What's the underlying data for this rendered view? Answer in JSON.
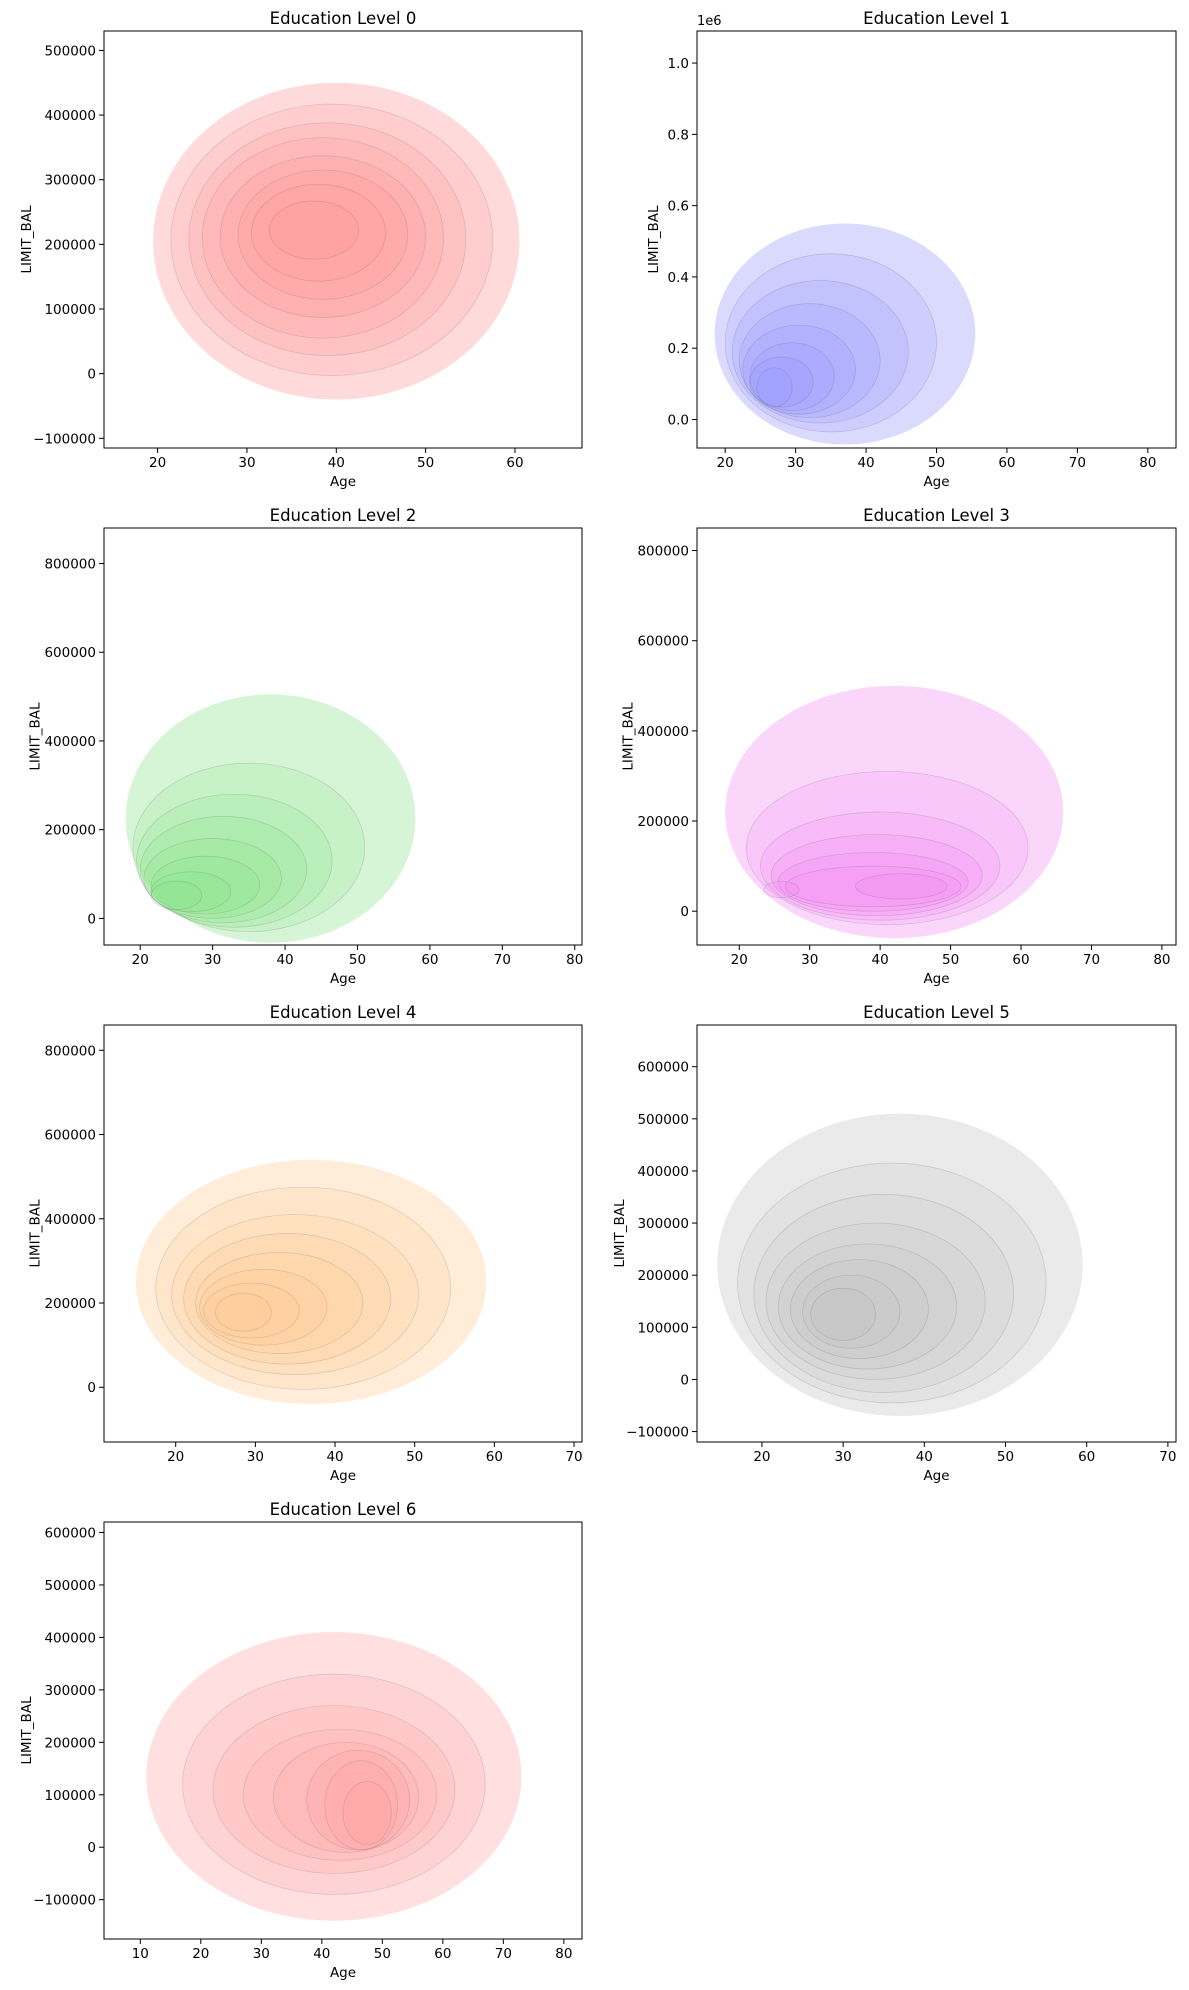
{
  "chart_data": [
    {
      "type": "kde_contour",
      "title": "Education Level 0",
      "xlabel": "Age",
      "ylabel": "LIMIT_BAL",
      "xlim": [
        14,
        67.5
      ],
      "ylim": [
        -115000,
        530000
      ],
      "xticks": [
        20,
        30,
        40,
        50,
        60
      ],
      "yticks": [
        -100000,
        0,
        100000,
        200000,
        300000,
        400000,
        500000
      ],
      "ytick_labels": [
        "−100000",
        "0",
        "100000",
        "200000",
        "300000",
        "400000",
        "500000"
      ],
      "offset_label": "",
      "color": "#ff8c8c",
      "levels": [
        {
          "cx": 40,
          "cy": 205000,
          "rx": 20.5,
          "ry": 245000
        },
        {
          "cx": 39.5,
          "cy": 207000,
          "rx": 18,
          "ry": 210000
        },
        {
          "cx": 39,
          "cy": 208000,
          "rx": 15.5,
          "ry": 180000
        },
        {
          "cx": 38.5,
          "cy": 210000,
          "rx": 13.5,
          "ry": 155000
        },
        {
          "cx": 38.5,
          "cy": 212000,
          "rx": 11.5,
          "ry": 125000
        },
        {
          "cx": 38.5,
          "cy": 215000,
          "rx": 9.5,
          "ry": 100000
        },
        {
          "cx": 38,
          "cy": 218000,
          "rx": 7.5,
          "ry": 75000
        },
        {
          "cx": 37.5,
          "cy": 222000,
          "rx": 5,
          "ry": 45000
        }
      ]
    },
    {
      "type": "kde_contour",
      "title": "Education Level 1",
      "xlabel": "Age",
      "ylabel": "LIMIT_BAL",
      "xlim": [
        16,
        84
      ],
      "ylim": [
        -80000,
        1090000
      ],
      "xticks": [
        20,
        30,
        40,
        50,
        60,
        70,
        80
      ],
      "yticks": [
        0,
        200000,
        400000,
        600000,
        800000,
        1000000
      ],
      "ytick_labels": [
        "0.0",
        "0.2",
        "0.4",
        "0.6",
        "0.8",
        "1.0"
      ],
      "offset_label": "1e6",
      "color": "#8c8cff",
      "levels": [
        {
          "cx": 37,
          "cy": 240000,
          "rx": 18.5,
          "ry": 310000
        },
        {
          "cx": 35,
          "cy": 215000,
          "rx": 15,
          "ry": 250000
        },
        {
          "cx": 33.5,
          "cy": 190000,
          "rx": 12.5,
          "ry": 200000
        },
        {
          "cx": 32,
          "cy": 165000,
          "rx": 10,
          "ry": 160000
        },
        {
          "cx": 30.5,
          "cy": 140000,
          "rx": 8,
          "ry": 125000
        },
        {
          "cx": 29.5,
          "cy": 120000,
          "rx": 6,
          "ry": 95000
        },
        {
          "cx": 28,
          "cy": 105000,
          "rx": 4.5,
          "ry": 70000
        },
        {
          "cx": 27,
          "cy": 90000,
          "rx": 2.5,
          "ry": 55000
        }
      ]
    },
    {
      "type": "kde_contour",
      "title": "Education Level 2",
      "xlabel": "Age",
      "ylabel": "LIMIT_BAL",
      "xlim": [
        15,
        81
      ],
      "ylim": [
        -60000,
        880000
      ],
      "xticks": [
        20,
        30,
        40,
        50,
        60,
        70,
        80
      ],
      "yticks": [
        0,
        200000,
        400000,
        600000,
        800000
      ],
      "ytick_labels": [
        "0",
        "200000",
        "400000",
        "600000",
        "800000"
      ],
      "offset_label": "",
      "color": "#7fe07f",
      "levels": [
        {
          "cx": 38,
          "cy": 225000,
          "rx": 20,
          "ry": 280000
        },
        {
          "cx": 35,
          "cy": 160000,
          "rx": 16,
          "ry": 190000
        },
        {
          "cx": 33,
          "cy": 130000,
          "rx": 13.5,
          "ry": 150000
        },
        {
          "cx": 31.5,
          "cy": 110000,
          "rx": 11.5,
          "ry": 120000
        },
        {
          "cx": 30,
          "cy": 90000,
          "rx": 9.5,
          "ry": 90000
        },
        {
          "cx": 29,
          "cy": 75000,
          "rx": 7.5,
          "ry": 65000
        },
        {
          "cx": 27,
          "cy": 60000,
          "rx": 5.5,
          "ry": 45000
        },
        {
          "cx": 25,
          "cy": 52000,
          "rx": 3.5,
          "ry": 32000
        }
      ]
    },
    {
      "type": "kde_contour",
      "title": "Education Level 3",
      "xlabel": "Age",
      "ylabel": "LIMIT_BAL",
      "xlim": [
        14,
        82
      ],
      "ylim": [
        -75000,
        850000
      ],
      "xticks": [
        20,
        30,
        40,
        50,
        60,
        70,
        80
      ],
      "yticks": [
        0,
        200000,
        400000,
        600000,
        800000
      ],
      "ytick_labels": [
        "0",
        "200000",
        "400000",
        "600000",
        "800000"
      ],
      "offset_label": "",
      "color": "#f27ff2",
      "levels": [
        {
          "cx": 42,
          "cy": 220000,
          "rx": 24,
          "ry": 280000
        },
        {
          "cx": 41,
          "cy": 140000,
          "rx": 20,
          "ry": 170000
        },
        {
          "cx": 40,
          "cy": 100000,
          "rx": 17,
          "ry": 120000
        },
        {
          "cx": 39.5,
          "cy": 80000,
          "rx": 15,
          "ry": 90000
        },
        {
          "cx": 39,
          "cy": 65000,
          "rx": 13.5,
          "ry": 65000
        },
        {
          "cx": 39,
          "cy": 55000,
          "rx": 12.5,
          "ry": 45000
        },
        {
          "cx": 43,
          "cy": 55000,
          "rx": 6.5,
          "ry": 28000
        },
        {
          "cx": 26,
          "cy": 48000,
          "rx": 2.5,
          "ry": 18000
        }
      ]
    },
    {
      "type": "kde_contour",
      "title": "Education Level 4",
      "xlabel": "Age",
      "ylabel": "LIMIT_BAL",
      "xlim": [
        11,
        71
      ],
      "ylim": [
        -130000,
        860000
      ],
      "xticks": [
        20,
        30,
        40,
        50,
        60,
        70
      ],
      "yticks": [
        0,
        200000,
        400000,
        600000,
        800000
      ],
      "ytick_labels": [
        "0",
        "200000",
        "400000",
        "600000",
        "800000"
      ],
      "offset_label": "",
      "color": "#ffc68a",
      "levels": [
        {
          "cx": 37,
          "cy": 250000,
          "rx": 22,
          "ry": 290000
        },
        {
          "cx": 36,
          "cy": 235000,
          "rx": 18.5,
          "ry": 240000
        },
        {
          "cx": 35,
          "cy": 220000,
          "rx": 15.5,
          "ry": 190000
        },
        {
          "cx": 34,
          "cy": 210000,
          "rx": 13,
          "ry": 155000
        },
        {
          "cx": 33,
          "cy": 200000,
          "rx": 10.5,
          "ry": 120000
        },
        {
          "cx": 31,
          "cy": 190000,
          "rx": 8,
          "ry": 90000
        },
        {
          "cx": 29.5,
          "cy": 182000,
          "rx": 6,
          "ry": 65000
        },
        {
          "cx": 28.5,
          "cy": 178000,
          "rx": 3.5,
          "ry": 45000
        }
      ]
    },
    {
      "type": "kde_contour",
      "title": "Education Level 5",
      "xlabel": "Age",
      "ylabel": "LIMIT_BAL",
      "xlim": [
        12,
        71
      ],
      "ylim": [
        -120000,
        680000
      ],
      "xticks": [
        20,
        30,
        40,
        50,
        60,
        70
      ],
      "yticks": [
        -100000,
        0,
        100000,
        200000,
        300000,
        400000,
        500000,
        600000
      ],
      "ytick_labels": [
        "−100000",
        "0",
        "100000",
        "200000",
        "300000",
        "400000",
        "500000",
        "600000"
      ],
      "offset_label": "",
      "color": "#bfbfbf",
      "levels": [
        {
          "cx": 37,
          "cy": 220000,
          "rx": 22.5,
          "ry": 290000
        },
        {
          "cx": 36,
          "cy": 185000,
          "rx": 19,
          "ry": 230000
        },
        {
          "cx": 35,
          "cy": 165000,
          "rx": 16,
          "ry": 190000
        },
        {
          "cx": 34,
          "cy": 150000,
          "rx": 13.5,
          "ry": 150000
        },
        {
          "cx": 33,
          "cy": 140000,
          "rx": 11,
          "ry": 120000
        },
        {
          "cx": 32,
          "cy": 135000,
          "rx": 8.5,
          "ry": 95000
        },
        {
          "cx": 31,
          "cy": 130000,
          "rx": 6,
          "ry": 70000
        },
        {
          "cx": 30,
          "cy": 125000,
          "rx": 4,
          "ry": 50000
        }
      ]
    },
    {
      "type": "kde_contour",
      "title": "Education Level 6",
      "xlabel": "Age",
      "ylabel": "LIMIT_BAL",
      "xlim": [
        4,
        83
      ],
      "ylim": [
        -175000,
        620000
      ],
      "xticks": [
        10,
        20,
        30,
        40,
        50,
        60,
        70,
        80
      ],
      "yticks": [
        -100000,
        0,
        100000,
        200000,
        300000,
        400000,
        500000,
        600000
      ],
      "ytick_labels": [
        "−100000",
        "0",
        "100000",
        "200000",
        "300000",
        "400000",
        "500000",
        "600000"
      ],
      "offset_label": "",
      "color": "#ff9a9a",
      "levels": [
        {
          "cx": 42,
          "cy": 135000,
          "rx": 31,
          "ry": 275000
        },
        {
          "cx": 42,
          "cy": 120000,
          "rx": 25,
          "ry": 210000
        },
        {
          "cx": 42,
          "cy": 110000,
          "rx": 20,
          "ry": 160000
        },
        {
          "cx": 43,
          "cy": 100000,
          "rx": 16,
          "ry": 125000
        },
        {
          "cx": 44,
          "cy": 95000,
          "rx": 12,
          "ry": 105000
        },
        {
          "cx": 46,
          "cy": 90000,
          "rx": 8.5,
          "ry": 95000
        },
        {
          "cx": 46.5,
          "cy": 80000,
          "rx": 6,
          "ry": 85000
        },
        {
          "cx": 47.5,
          "cy": 65000,
          "rx": 4,
          "ry": 60000
        }
      ]
    }
  ]
}
